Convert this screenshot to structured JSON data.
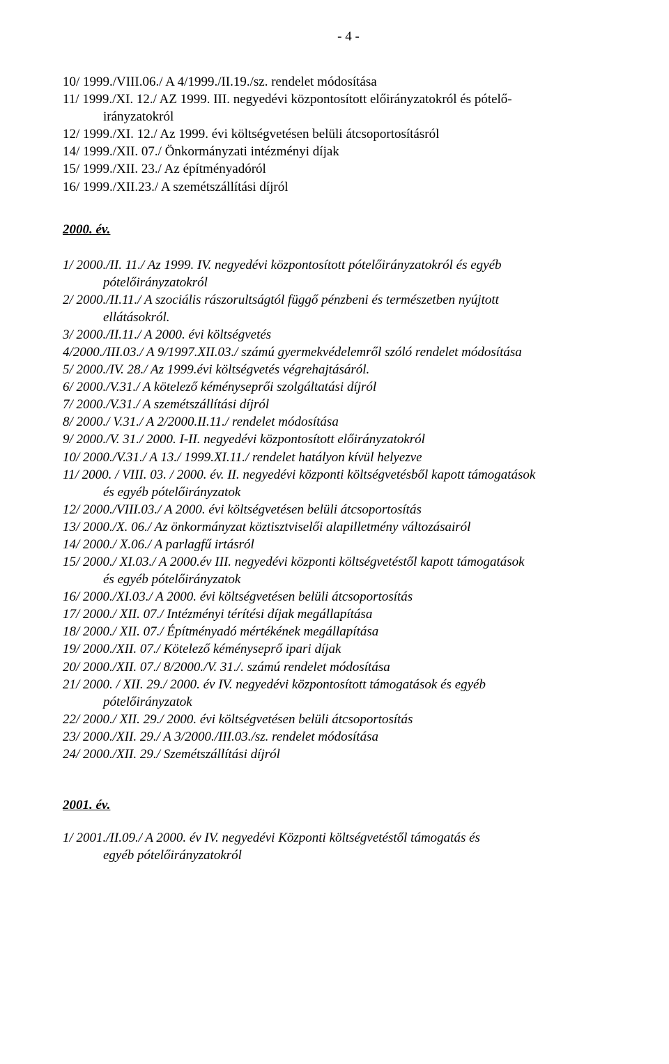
{
  "pageNumber": "- 4 -",
  "block1999": {
    "lines": [
      {
        "text": "10/ 1999./VIII.06./ A 4/1999./II.19./sz. rendelet módosítása",
        "indent": false
      },
      {
        "text": "11/ 1999./XI. 12./ AZ 1999. III. negyedévi központosított előirányzatokról és pótelő-",
        "indent": false
      },
      {
        "text": "irányzatokról",
        "indent": true
      },
      {
        "text": "12/ 1999./XI. 12./ Az 1999. évi költségvetésen belüli átcsoportosításról",
        "indent": false
      },
      {
        "text": "14/ 1999./XII. 07./ Önkormányzati intézményi díjak",
        "indent": false
      },
      {
        "text": "15/ 1999./XII. 23./ Az építményadóról",
        "indent": false
      },
      {
        "text": "16/ 1999./XII.23./ A szemétszállítási díjról",
        "indent": false
      }
    ]
  },
  "heading2000": "2000. év.",
  "block2000": {
    "lines": [
      {
        "text": "1/ 2000./II. 11./ Az 1999. IV. negyedévi központosított pótelőirányzatokról és egyéb",
        "indent": false
      },
      {
        "text": "pótelőirányzatokról",
        "indent": true
      },
      {
        "text": "2/ 2000./II.11./ A szociális rászorultságtól függő pénzbeni és természetben nyújtott",
        "indent": false
      },
      {
        "text": "ellátásokról.",
        "indent": true
      },
      {
        "text": "3/ 2000./II.11./ A 2000. évi költségvetés",
        "indent": false
      },
      {
        "text": "4/2000./III.03./ A 9/1997.XII.03./ számú gyermekvédelemről szóló rendelet módosítása",
        "indent": false
      },
      {
        "text": "5/ 2000./IV. 28./ Az 1999.évi költségvetés végrehajtásáról.",
        "indent": false
      },
      {
        "text": "6/ 2000./V.31./ A kötelező kéményseprői szolgáltatási díjról",
        "indent": false
      },
      {
        "text": "7/ 2000./V.31./ A szemétszállítási díjról",
        "indent": false
      },
      {
        "text": "8/ 2000./ V.31./ A 2/2000.II.11./ rendelet módosítása",
        "indent": false
      },
      {
        "text": "9/ 2000./V. 31./ 2000. I-II. negyedévi központosított előirányzatokról",
        "indent": false
      },
      {
        "text": "10/ 2000./V.31./ A 13./ 1999.XI.11./ rendelet hatályon kívül helyezve",
        "indent": false
      },
      {
        "text": "11/ 2000. / VIII. 03. / 2000. év. II. negyedévi központi költségvetésből kapott támogatások",
        "indent": false
      },
      {
        "text": "és egyéb pótelőirányzatok",
        "indent": true
      },
      {
        "text": "12/ 2000./VIII.03./ A 2000. évi költségvetésen belüli átcsoportosítás",
        "indent": false
      },
      {
        "text": "13/ 2000./X. 06./ Az önkormányzat köztisztviselői alapilletmény változásairól",
        "indent": false
      },
      {
        "text": "14/ 2000./ X.06./ A parlagfű irtásról",
        "indent": false
      },
      {
        "text": "15/ 2000./ XI.03./ A 2000.év III. negyedévi központi költségvetéstől kapott támogatások",
        "indent": false
      },
      {
        "text": "és egyéb pótelőirányzatok",
        "indent": true
      },
      {
        "text": "16/ 2000./XI.03./ A 2000. évi költségvetésen belüli átcsoportosítás",
        "indent": false
      },
      {
        "text": "17/ 2000./ XII. 07./ Intézményi térítési díjak megállapítása",
        "indent": false
      },
      {
        "text": "18/ 2000./ XII. 07./ Építményadó mértékének megállapítása",
        "indent": false
      },
      {
        "text": "19/ 2000./XII. 07./ Kötelező kéményseprő ipari díjak",
        "indent": false
      },
      {
        "text": "20/ 2000./XII. 07./ 8/2000./V. 31./. számú rendelet módosítása",
        "indent": false
      },
      {
        "text": "21/ 2000. / XII. 29./ 2000. év IV. negyedévi központosított támogatások és egyéb",
        "indent": false
      },
      {
        "text": "pótelőirányzatok",
        "indent": true
      },
      {
        "text": "22/ 2000./ XII. 29./ 2000. évi költségvetésen belüli átcsoportosítás",
        "indent": false
      },
      {
        "text": "23/ 2000./XII. 29./ A 3/2000./III.03./sz. rendelet módosítása",
        "indent": false
      },
      {
        "text": "24/ 2000./XII. 29./ Szemétszállítási díjról",
        "indent": false
      }
    ]
  },
  "heading2001": "2001. év.",
  "block2001": {
    "lines": [
      {
        "text": "1/ 2001./II.09./ A 2000. év IV. negyedévi Központi költségvetéstől támogatás és",
        "indent": false
      },
      {
        "text": "egyéb pótelőirányzatokról",
        "indent": true
      }
    ]
  }
}
